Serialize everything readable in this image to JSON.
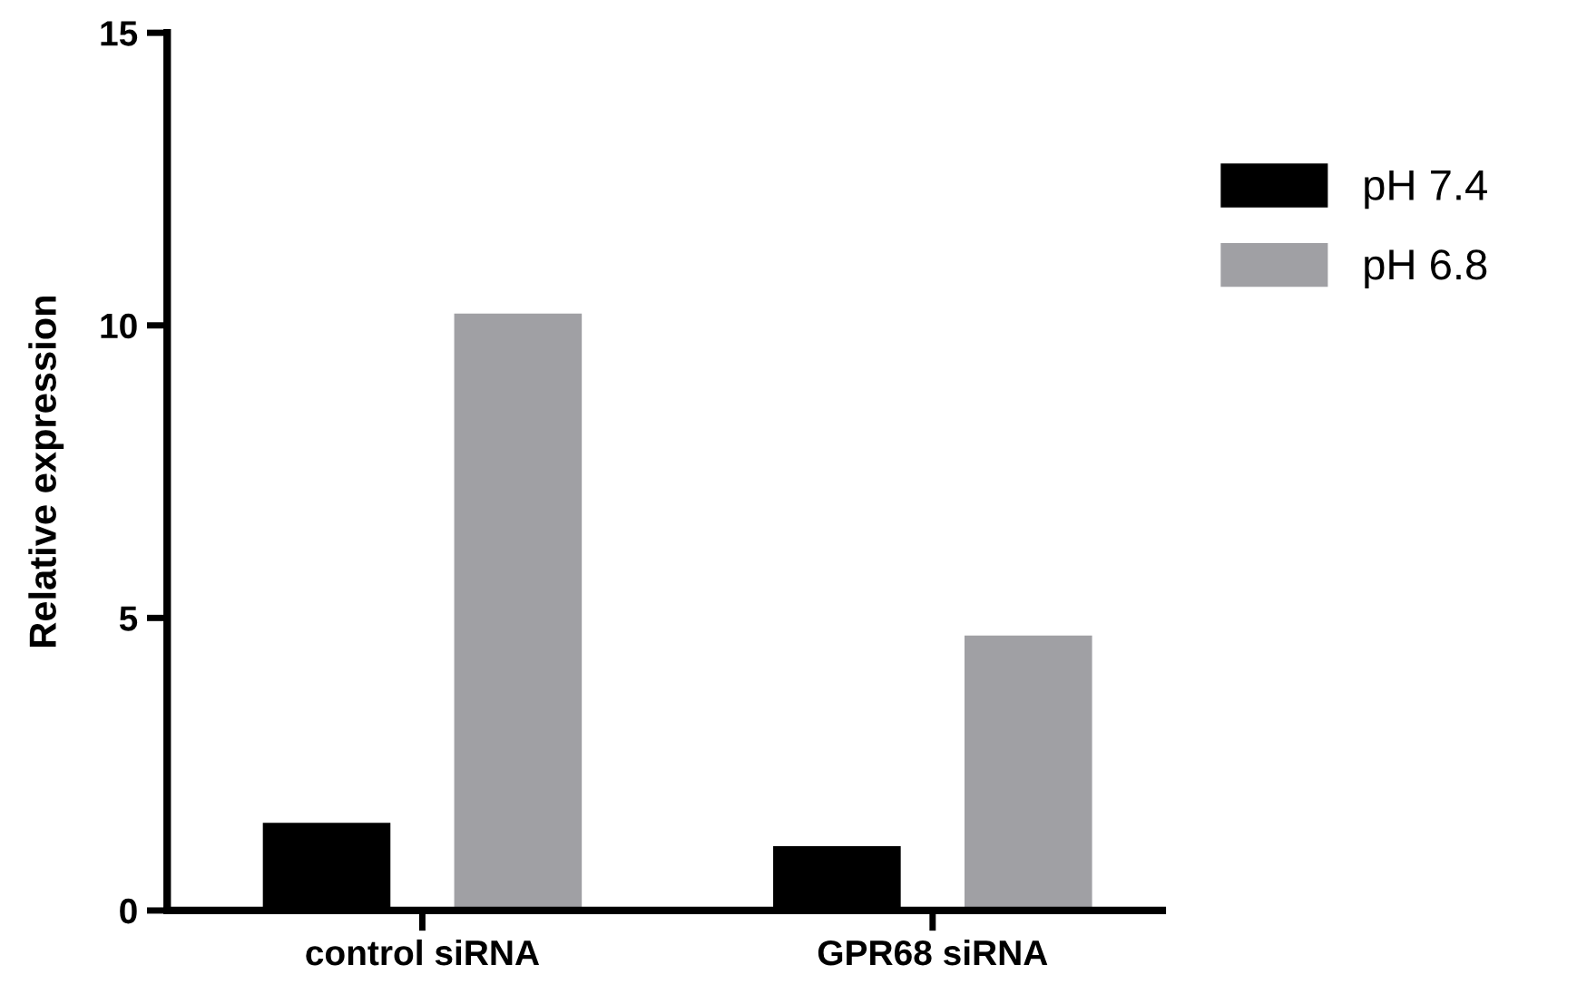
{
  "chart_data": {
    "type": "bar",
    "ylabel": "Relative expression",
    "categories": [
      "control siRNA",
      "GPR68 siRNA"
    ],
    "series": [
      {
        "name": "pH 7.4",
        "color": "#000000",
        "values": [
          1.5,
          1.1
        ]
      },
      {
        "name": "pH 6.8",
        "color": "#a0a0a4",
        "values": [
          10.2,
          4.7
        ]
      }
    ],
    "ylim": [
      0,
      15
    ],
    "yticks": [
      0,
      5,
      10,
      15
    ],
    "grid": false,
    "legend": "right"
  }
}
